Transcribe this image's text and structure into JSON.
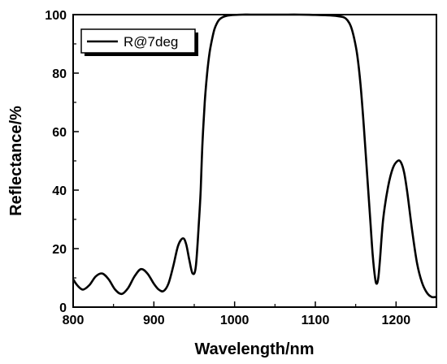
{
  "chart_data": {
    "type": "line",
    "title": "",
    "xlabel": "Wavelength/nm",
    "ylabel": "Reflectance/%",
    "xlim": [
      800,
      1250
    ],
    "ylim": [
      0,
      100
    ],
    "x_ticks": [
      800,
      900,
      1000,
      1100,
      1200
    ],
    "y_ticks": [
      0,
      20,
      40,
      60,
      80,
      100
    ],
    "grid": false,
    "legend_position": "top-left",
    "series": [
      {
        "name": "R@7deg",
        "color": "#000000",
        "x": [
          800,
          805,
          812,
          820,
          828,
          836,
          844,
          852,
          860,
          868,
          876,
          884,
          892,
          900,
          906,
          912,
          918,
          924,
          930,
          936,
          940,
          944,
          948,
          952,
          956,
          958,
          960,
          963,
          966,
          969,
          972,
          975,
          978,
          981,
          985,
          990,
          995,
          1000,
          1010,
          1020,
          1040,
          1060,
          1080,
          1100,
          1120,
          1130,
          1136,
          1140,
          1144,
          1148,
          1152,
          1156,
          1160,
          1164,
          1168,
          1171,
          1174,
          1176,
          1178,
          1180,
          1184,
          1190,
          1196,
          1202,
          1206,
          1210,
          1214,
          1220,
          1226,
          1232,
          1238,
          1244,
          1250
        ],
        "y": [
          9.5,
          7.5,
          6,
          7.5,
          10.5,
          11.5,
          9.5,
          6,
          4.5,
          6.5,
          10.5,
          13,
          11.5,
          8,
          6,
          5.5,
          8,
          14,
          21,
          23.5,
          21.5,
          16,
          11.5,
          14,
          30,
          40,
          55,
          70,
          80,
          87,
          91.5,
          95,
          97,
          98.3,
          99.1,
          99.6,
          99.8,
          99.9,
          100,
          100,
          100,
          100,
          100,
          99.9,
          99.7,
          99.4,
          99,
          98,
          96,
          92,
          86,
          76,
          62,
          46,
          30,
          18,
          10,
          8,
          10,
          16,
          30,
          41,
          47.5,
          50,
          49.5,
          46,
          39,
          26,
          15,
          8.5,
          5,
          3.5,
          3.5
        ]
      }
    ]
  }
}
